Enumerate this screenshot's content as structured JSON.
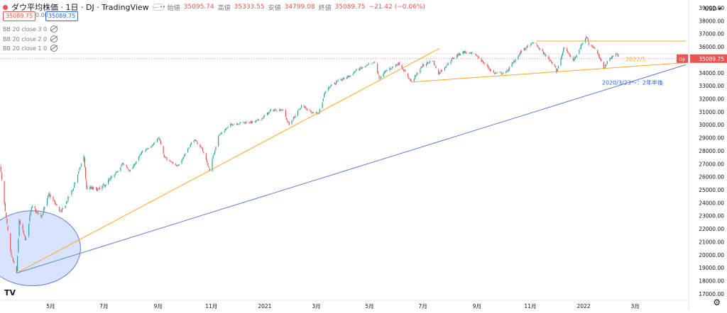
{
  "header": {
    "symbol_title": "ダウ平均株価 · 1日 · DJ · TradingView",
    "ohlc": [
      {
        "label": "始値",
        "value": "35095.74"
      },
      {
        "label": "高値",
        "value": "35333.55"
      },
      {
        "label": "安値",
        "value": "34799.08"
      },
      {
        "label": "終値",
        "value": "35089.75"
      },
      {
        "label": "",
        "value": "−21.42 (−0.06%)"
      }
    ],
    "price_red": "35089.75",
    "price_zero": "0.00",
    "price_blue": "35089.75"
  },
  "indicators": [
    "BB 20 close 3 0",
    "BB 20 close 2 0",
    "BB 20 close 1 0"
  ],
  "currency": "USD",
  "last_price_tag": {
    "symbol": "DJI",
    "value": "35089.75"
  },
  "annotations": [
    {
      "text": "2022/5"
    },
    {
      "text": "2020/3/23〜：2年半後"
    }
  ],
  "chart_data": {
    "type": "candlestick",
    "x_labels": [
      "5月",
      "7月",
      "9月",
      "11月",
      "2021",
      "3月",
      "5月",
      "7月",
      "9月",
      "11月",
      "2022",
      "3月"
    ],
    "y_ticks": [
      17000,
      18000,
      19000,
      20000,
      21000,
      22000,
      23000,
      24000,
      25000,
      26000,
      27000,
      28000,
      29000,
      30000,
      31000,
      32000,
      33000,
      34000,
      35000,
      36000,
      37000,
      38000,
      39000
    ],
    "ylim": [
      16500,
      39600
    ],
    "x_range": [
      "2020-03-04",
      "2022-04-28"
    ],
    "last_price": 35089.75,
    "series_close": [
      [
        "2020-03-04",
        27000
      ],
      [
        "2020-03-09",
        23850
      ],
      [
        "2020-03-16",
        20190
      ],
      [
        "2020-03-23",
        18590
      ],
      [
        "2020-03-26",
        22550
      ],
      [
        "2020-04-03",
        21050
      ],
      [
        "2020-04-09",
        23720
      ],
      [
        "2020-04-21",
        23000
      ],
      [
        "2020-04-29",
        24630
      ],
      [
        "2020-05-13",
        23250
      ],
      [
        "2020-05-26",
        24990
      ],
      [
        "2020-06-08",
        27570
      ],
      [
        "2020-06-11",
        25130
      ],
      [
        "2020-06-26",
        25010
      ],
      [
        "2020-07-13",
        26090
      ],
      [
        "2020-07-22",
        27010
      ],
      [
        "2020-07-31",
        26430
      ],
      [
        "2020-08-14",
        27930
      ],
      [
        "2020-08-24",
        28300
      ],
      [
        "2020-09-02",
        29100
      ],
      [
        "2020-09-08",
        27500
      ],
      [
        "2020-09-23",
        26760
      ],
      [
        "2020-10-09",
        28590
      ],
      [
        "2020-10-12",
        28840
      ],
      [
        "2020-10-21",
        28210
      ],
      [
        "2020-10-30",
        26500
      ],
      [
        "2020-11-09",
        29160
      ],
      [
        "2020-11-24",
        30050
      ],
      [
        "2020-12-08",
        30170
      ],
      [
        "2020-12-21",
        30220
      ],
      [
        "2020-12-31",
        30600
      ],
      [
        "2021-01-08",
        31100
      ],
      [
        "2021-01-21",
        31180
      ],
      [
        "2021-01-29",
        29980
      ],
      [
        "2021-02-12",
        31450
      ],
      [
        "2021-02-26",
        30930
      ],
      [
        "2021-03-04",
        30920
      ],
      [
        "2021-03-11",
        32480
      ],
      [
        "2021-03-17",
        33020
      ],
      [
        "2021-04-09",
        33800
      ],
      [
        "2021-04-16",
        34200
      ],
      [
        "2021-05-07",
        34780
      ],
      [
        "2021-05-12",
        33590
      ],
      [
        "2021-05-21",
        34200
      ],
      [
        "2021-06-04",
        34750
      ],
      [
        "2021-06-18",
        33290
      ],
      [
        "2021-06-30",
        34500
      ],
      [
        "2021-07-12",
        34990
      ],
      [
        "2021-07-19",
        33960
      ],
      [
        "2021-08-06",
        35200
      ],
      [
        "2021-08-16",
        35620
      ],
      [
        "2021-08-31",
        35360
      ],
      [
        "2021-09-20",
        33970
      ],
      [
        "2021-10-04",
        34000
      ],
      [
        "2021-10-22",
        35670
      ],
      [
        "2021-11-05",
        36330
      ],
      [
        "2021-11-30",
        34480
      ],
      [
        "2021-12-01",
        34020
      ],
      [
        "2021-12-10",
        35970
      ],
      [
        "2021-12-20",
        34930
      ],
      [
        "2022-01-04",
        36800
      ],
      [
        "2022-01-07",
        36230
      ],
      [
        "2022-01-14",
        35900
      ],
      [
        "2022-01-24",
        34360
      ],
      [
        "2022-01-31",
        35130
      ],
      [
        "2022-02-08",
        35460
      ],
      [
        "2022-02-10",
        35240
      ]
    ],
    "trendlines": [
      {
        "color": "#ffa726",
        "points": [
          [
            "2020-03-23",
            18590
          ],
          [
            "2021-07-20",
            35870
          ]
        ]
      },
      {
        "color": "#ffa726",
        "points": [
          [
            "2021-06-18",
            33290
          ],
          [
            "2022-04-28",
            34780
          ]
        ]
      },
      {
        "color": "#ffa726",
        "points": [
          [
            "2021-11-08",
            36440
          ],
          [
            "2022-04-28",
            36440
          ]
        ]
      },
      {
        "color": "#5b7fd6",
        "points": [
          [
            "2020-03-23",
            18590
          ],
          [
            "2022-04-28",
            34620
          ]
        ]
      }
    ],
    "grid": false
  }
}
